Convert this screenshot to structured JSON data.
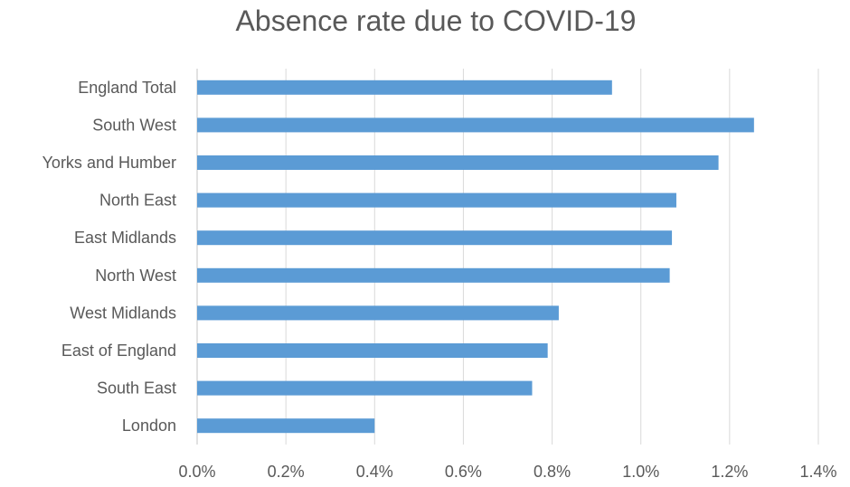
{
  "chart_data": {
    "type": "bar",
    "orientation": "horizontal",
    "title": "Absence rate due to COVID-19",
    "categories": [
      "England Total",
      "South West",
      "Yorks and Humber",
      "North East",
      "East Midlands",
      "North West",
      "West Midlands",
      "East of England",
      "South East",
      "London"
    ],
    "values": [
      0.935,
      1.255,
      1.175,
      1.08,
      1.07,
      1.065,
      0.815,
      0.79,
      0.755,
      0.4
    ],
    "x_ticks": [
      "0.0%",
      "0.2%",
      "0.4%",
      "0.6%",
      "0.8%",
      "1.0%",
      "1.2%",
      "1.4%"
    ],
    "xlim": [
      0,
      1.4
    ],
    "xlabel": "",
    "ylabel": "",
    "grid": true,
    "legend": "none",
    "bar_color": "#5b9bd5",
    "grid_color": "#d9d9d9",
    "text_color": "#595959"
  }
}
